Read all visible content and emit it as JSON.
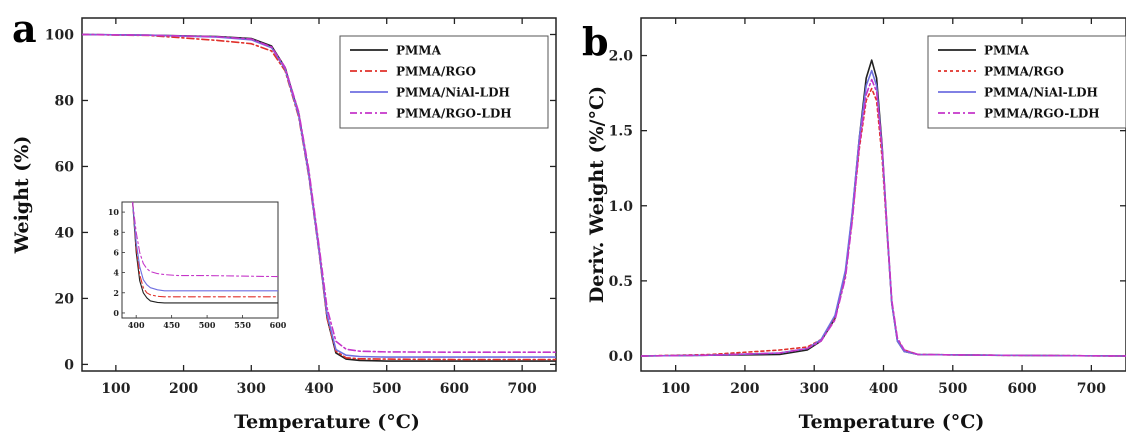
{
  "chart_data": [
    {
      "panel": "a",
      "type": "line",
      "xlabel": "Temperature (°C)",
      "ylabel": "Weight (%)",
      "xlim": [
        50,
        750
      ],
      "ylim": [
        -2,
        105
      ],
      "xticks": [
        100,
        200,
        300,
        400,
        500,
        600,
        700
      ],
      "yticks": [
        0,
        20,
        40,
        60,
        80,
        100
      ],
      "legend_position": "top-right",
      "series": [
        {
          "name": "PMMA",
          "color": "#222222",
          "dash": "solid",
          "x": [
            50,
            150,
            250,
            300,
            330,
            350,
            370,
            385,
            400,
            412,
            425,
            440,
            460,
            500,
            600,
            750
          ],
          "y": [
            100,
            99.8,
            99.4,
            98.8,
            96.5,
            90,
            76,
            58,
            35,
            14,
            3.5,
            1.6,
            1.2,
            1.0,
            1.0,
            1.0
          ]
        },
        {
          "name": "PMMA/RGO",
          "color": "#e0302a",
          "dash": "dashdot",
          "x": [
            50,
            150,
            250,
            300,
            330,
            350,
            370,
            385,
            400,
            412,
            425,
            440,
            460,
            500,
            600,
            750
          ],
          "y": [
            100,
            99.7,
            98.2,
            97.2,
            95,
            89,
            75,
            57,
            34,
            14,
            4,
            2.0,
            1.7,
            1.6,
            1.5,
            1.5
          ]
        },
        {
          "name": "PMMA/NiAl-LDH",
          "color": "#6f6fe0",
          "dash": "solid",
          "x": [
            50,
            150,
            250,
            300,
            330,
            350,
            370,
            385,
            400,
            412,
            425,
            440,
            460,
            500,
            600,
            750
          ],
          "y": [
            100,
            99.8,
            99.2,
            98.4,
            96,
            89.5,
            75.5,
            57.5,
            34.5,
            15,
            4.5,
            2.8,
            2.4,
            2.2,
            2.2,
            2.2
          ]
        },
        {
          "name": "PMMA/RGO-LDH",
          "color": "#c535c9",
          "dash": "dashdot",
          "x": [
            50,
            150,
            250,
            300,
            330,
            350,
            370,
            385,
            400,
            412,
            425,
            440,
            460,
            500,
            600,
            750
          ],
          "y": [
            100,
            99.8,
            99.3,
            98.6,
            96.2,
            90,
            76.5,
            59,
            36,
            17,
            7,
            4.6,
            4.0,
            3.8,
            3.7,
            3.7
          ]
        }
      ],
      "inset": {
        "xlim": [
          380,
          600
        ],
        "ylim": [
          -0.5,
          11
        ],
        "xticks": [
          400,
          450,
          500,
          550,
          600
        ],
        "yticks": [
          0,
          2,
          4,
          6,
          8,
          10
        ],
        "series": [
          {
            "name": "PMMA",
            "color": "#222222",
            "dash": "solid",
            "x": [
              395,
              400,
              405,
              410,
              415,
              420,
              430,
              440,
              460,
              500,
              600
            ],
            "y": [
              11,
              6,
              3.2,
              2.0,
              1.5,
              1.2,
              1.05,
              1.0,
              1.0,
              1.0,
              1.0
            ]
          },
          {
            "name": "PMMA/RGO",
            "color": "#e0302a",
            "dash": "dashdot",
            "x": [
              395,
              400,
              405,
              410,
              415,
              420,
              430,
              440,
              460,
              500,
              600
            ],
            "y": [
              11,
              6.5,
              3.8,
              2.5,
              2.0,
              1.8,
              1.65,
              1.6,
              1.6,
              1.6,
              1.6
            ]
          },
          {
            "name": "PMMA/NiAl-LDH",
            "color": "#6f6fe0",
            "dash": "solid",
            "x": [
              395,
              400,
              405,
              410,
              415,
              420,
              430,
              440,
              460,
              500,
              600
            ],
            "y": [
              11,
              7,
              4.6,
              3.3,
              2.8,
              2.5,
              2.3,
              2.2,
              2.2,
              2.2,
              2.2
            ]
          },
          {
            "name": "PMMA/RGO-LDH",
            "color": "#c535c9",
            "dash": "dashdot",
            "x": [
              395,
              400,
              405,
              410,
              415,
              420,
              430,
              440,
              460,
              500,
              600
            ],
            "y": [
              11,
              8,
              6.0,
              4.9,
              4.4,
              4.1,
              3.9,
              3.8,
              3.7,
              3.7,
              3.6
            ]
          }
        ]
      }
    },
    {
      "panel": "b",
      "type": "line",
      "xlabel": "Temperature (°C)",
      "ylabel": "Deriv. Weight (%/°C)",
      "xlim": [
        50,
        750
      ],
      "ylim": [
        -0.1,
        2.25
      ],
      "xticks": [
        100,
        200,
        300,
        400,
        500,
        600,
        700
      ],
      "yticks": [
        0.0,
        0.5,
        1.0,
        1.5,
        2.0
      ],
      "legend_position": "top-right",
      "series": [
        {
          "name": "PMMA",
          "color": "#222222",
          "dash": "solid",
          "x": [
            50,
            150,
            250,
            290,
            310,
            330,
            345,
            355,
            365,
            375,
            383,
            390,
            398,
            405,
            412,
            420,
            430,
            450,
            550,
            750
          ],
          "y": [
            0,
            0.005,
            0.01,
            0.04,
            0.1,
            0.25,
            0.55,
            0.95,
            1.45,
            1.85,
            1.97,
            1.85,
            1.4,
            0.85,
            0.35,
            0.1,
            0.03,
            0.01,
            0.005,
            0.0
          ]
        },
        {
          "name": "PMMA/RGO",
          "color": "#e0302a",
          "dash": "dotted",
          "x": [
            50,
            150,
            250,
            290,
            310,
            330,
            345,
            355,
            365,
            375,
            383,
            390,
            398,
            405,
            412,
            420,
            430,
            450,
            550,
            750
          ],
          "y": [
            0,
            0.01,
            0.04,
            0.06,
            0.11,
            0.26,
            0.55,
            0.92,
            1.38,
            1.7,
            1.78,
            1.7,
            1.32,
            0.82,
            0.36,
            0.11,
            0.04,
            0.01,
            0.005,
            0.0
          ]
        },
        {
          "name": "PMMA/NiAl-LDH",
          "color": "#6f6fe0",
          "dash": "solid",
          "x": [
            50,
            150,
            250,
            290,
            310,
            330,
            345,
            355,
            365,
            375,
            383,
            390,
            398,
            405,
            412,
            420,
            430,
            450,
            550,
            750
          ],
          "y": [
            0,
            0.005,
            0.02,
            0.05,
            0.11,
            0.27,
            0.57,
            0.96,
            1.45,
            1.8,
            1.9,
            1.8,
            1.38,
            0.84,
            0.35,
            0.1,
            0.03,
            0.01,
            0.005,
            0.0
          ]
        },
        {
          "name": "PMMA/RGO-LDH",
          "color": "#c535c9",
          "dash": "dashdot",
          "x": [
            50,
            150,
            250,
            290,
            310,
            330,
            345,
            355,
            365,
            375,
            383,
            390,
            398,
            405,
            412,
            420,
            430,
            450,
            550,
            750
          ],
          "y": [
            0,
            0.005,
            0.02,
            0.05,
            0.1,
            0.24,
            0.52,
            0.9,
            1.4,
            1.74,
            1.84,
            1.76,
            1.38,
            0.86,
            0.37,
            0.12,
            0.04,
            0.01,
            0.005,
            0.0
          ]
        }
      ]
    }
  ]
}
